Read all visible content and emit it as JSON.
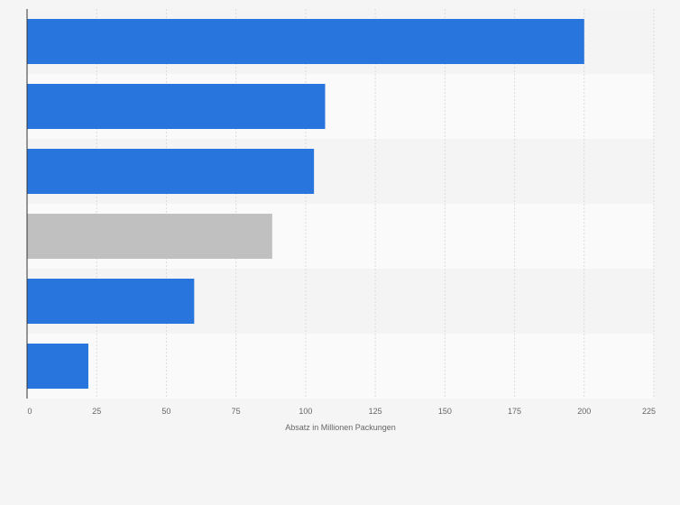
{
  "chart_data": {
    "type": "bar",
    "orientation": "horizontal",
    "categories": [
      "",
      "",
      "",
      "",
      "",
      ""
    ],
    "values": [
      200,
      107,
      103,
      88,
      60,
      22
    ],
    "highlight_index": 3,
    "bar_color": "#2876dd",
    "highlight_color": "#c0c0c0",
    "xlabel": "Absatz in Millionen Packungen",
    "ylabel": "",
    "xlim": [
      0,
      225
    ],
    "x_ticks": [
      0,
      25,
      50,
      75,
      100,
      125,
      150,
      175,
      200,
      225
    ],
    "grid": true
  }
}
